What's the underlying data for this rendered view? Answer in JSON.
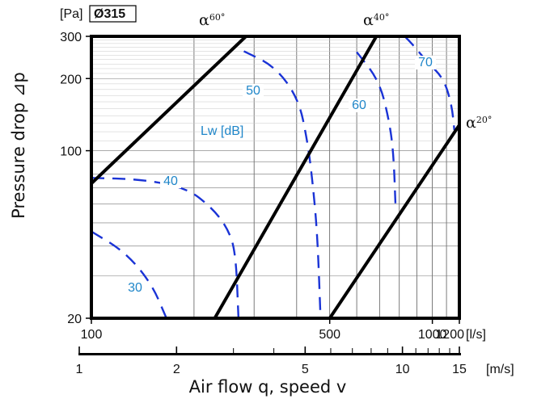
{
  "chart_data": {
    "type": "line",
    "x_scale": "log",
    "y_scale": "log",
    "xlim": [
      100,
      1200
    ],
    "ylim": [
      20,
      300
    ],
    "x_unit": "[l/s]",
    "y_unit": "[Pa]",
    "diameter_label": "Ø315",
    "xlabel": "Air flow q, speed v",
    "ylabel": "Pressure drop ⊿p",
    "x_ticks": [
      {
        "value": 100,
        "label": "100"
      },
      {
        "value": 500,
        "label": "500"
      },
      {
        "value": 1000,
        "label": "1000"
      },
      {
        "value": 1200,
        "label": "1200"
      }
    ],
    "y_ticks": [
      {
        "value": 20,
        "label": "20"
      },
      {
        "value": 100,
        "label": "100"
      },
      {
        "value": 200,
        "label": "200"
      },
      {
        "value": 300,
        "label": "300"
      }
    ],
    "speed_axis": {
      "unit": "[m/s]",
      "range": [
        1,
        15
      ],
      "ticks": [
        {
          "value": 1,
          "label": "1"
        },
        {
          "value": 2,
          "label": "2"
        },
        {
          "value": 5,
          "label": "5"
        },
        {
          "value": 10,
          "label": "10"
        },
        {
          "value": 15,
          "label": "15"
        }
      ],
      "minor": [
        3,
        4,
        6,
        7,
        8,
        9,
        11,
        12,
        13,
        14
      ]
    },
    "grid": true,
    "series": [
      {
        "name": "α60°",
        "style": "solid",
        "points": [
          [
            100,
            73
          ],
          [
            284,
            300
          ]
        ]
      },
      {
        "name": "α40°",
        "style": "solid",
        "points": [
          [
            230,
            20
          ],
          [
            685,
            300
          ]
        ]
      },
      {
        "name": "α20°",
        "style": "solid",
        "points": [
          [
            500,
            20
          ],
          [
            1200,
            128
          ]
        ]
      }
    ],
    "sound_curves": {
      "label": "Lw [dB]",
      "color": "#1a33d6",
      "label_color": "#1f86c9",
      "curves": [
        {
          "name": "30",
          "points": [
            [
              100,
              46
            ],
            [
              125,
              38
            ],
            [
              150,
              28
            ],
            [
              166,
              20
            ]
          ]
        },
        {
          "name": "40",
          "points": [
            [
              100,
              77
            ],
            [
              140,
              76
            ],
            [
              190,
              70
            ],
            [
              225,
              58
            ],
            [
              250,
              48
            ],
            [
              265,
              38
            ],
            [
              270,
              20
            ]
          ]
        },
        {
          "name": "50",
          "points": [
            [
              280,
              260
            ],
            [
              345,
              225
            ],
            [
              405,
              165
            ],
            [
              430,
              110
            ],
            [
              445,
              75
            ],
            [
              460,
              45
            ],
            [
              470,
              20
            ]
          ]
        },
        {
          "name": "60",
          "points": [
            [
              600,
              258
            ],
            [
              700,
              195
            ],
            [
              750,
              130
            ],
            [
              770,
              95
            ],
            [
              780,
              58
            ]
          ]
        },
        {
          "name": "70",
          "points": [
            [
              830,
              300
            ],
            [
              880,
              275
            ],
            [
              965,
              235
            ],
            [
              1080,
              200
            ],
            [
              1140,
              155
            ],
            [
              1160,
              122
            ]
          ]
        }
      ]
    },
    "annotations": [
      {
        "text": "α",
        "sup": "60°"
      },
      {
        "text": "α",
        "sup": "40°"
      },
      {
        "text": "α",
        "sup": "20°"
      }
    ]
  }
}
